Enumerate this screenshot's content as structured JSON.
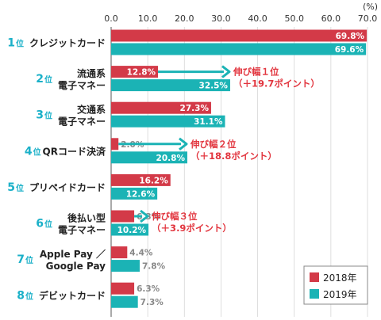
{
  "chart_data": {
    "type": "bar",
    "orientation": "horizontal",
    "unit_label": "(%)",
    "xlim": [
      0,
      70
    ],
    "x_ticks": [
      "0.0",
      "10.0",
      "20.0",
      "30.0",
      "40.0",
      "50.0",
      "60.0",
      "70.0"
    ],
    "grid": true,
    "legend_position": "bottom-right",
    "colors": {
      "2018年": "#d33a48",
      "2019年": "#1bb3b5",
      "rank": "#1ab0c8",
      "note": "#e2363f"
    },
    "categories": [
      {
        "rank": "1",
        "rank_suffix": "位",
        "label_lines": [
          "クレジットカード"
        ]
      },
      {
        "rank": "2",
        "rank_suffix": "位",
        "label_lines": [
          "流通系",
          "電子マネー"
        ]
      },
      {
        "rank": "3",
        "rank_suffix": "位",
        "label_lines": [
          "交通系",
          "電子マネー"
        ]
      },
      {
        "rank": "4",
        "rank_suffix": "位",
        "label_lines": [
          "QRコード決済"
        ]
      },
      {
        "rank": "5",
        "rank_suffix": "位",
        "label_lines": [
          "プリペイドカード"
        ]
      },
      {
        "rank": "6",
        "rank_suffix": "位",
        "label_lines": [
          "後払い型",
          "電子マネー"
        ]
      },
      {
        "rank": "7",
        "rank_suffix": "位",
        "label_lines": [
          "Apple Pay ／",
          "Google Pay"
        ]
      },
      {
        "rank": "8",
        "rank_suffix": "位",
        "label_lines": [
          "デビットカード"
        ]
      }
    ],
    "series": [
      {
        "name": "2018年",
        "values": [
          69.8,
          12.8,
          27.3,
          2.0,
          16.2,
          6.3,
          4.4,
          6.3
        ],
        "labels": [
          "69.8%",
          "12.8%",
          "27.3%",
          "2.0%",
          "16.2%",
          "6.3%",
          "4.4%",
          "6.3%"
        ]
      },
      {
        "name": "2019年",
        "values": [
          69.6,
          32.5,
          31.1,
          20.8,
          12.6,
          10.2,
          7.8,
          7.3
        ],
        "labels": [
          "69.6%",
          "32.5%",
          "31.1%",
          "20.8%",
          "12.6%",
          "10.2%",
          "7.8%",
          "7.3%"
        ]
      }
    ],
    "annotations": [
      {
        "category_index": 1,
        "lines": [
          "伸び幅１位",
          "（＋19.7ポイント）"
        ]
      },
      {
        "category_index": 3,
        "lines": [
          "伸び幅２位",
          "（＋18.8ポイント）"
        ]
      },
      {
        "category_index": 5,
        "lines": [
          "伸び幅３位",
          "（＋3.9ポイント）"
        ]
      }
    ]
  }
}
